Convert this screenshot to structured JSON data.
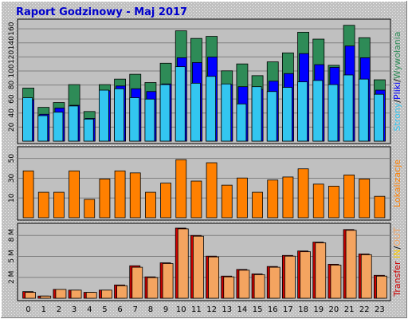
{
  "chart_data": {
    "type": "bar",
    "title": "Raport Godzinowy -  Maj 2017",
    "categories": [
      "0",
      "1",
      "2",
      "3",
      "4",
      "5",
      "6",
      "7",
      "8",
      "9",
      "10",
      "11",
      "12",
      "13",
      "14",
      "15",
      "16",
      "17",
      "18",
      "19",
      "20",
      "21",
      "22",
      "23"
    ],
    "panels": [
      {
        "ylim": [
          0,
          170
        ],
        "yticks": [
          "20",
          "40",
          "60",
          "80",
          "100",
          "120",
          "140",
          "160"
        ],
        "labels": [
          {
            "text": "Strony",
            "color": "#33c6f0"
          },
          {
            "text": "/",
            "color": "#000000"
          },
          {
            "text": "Pliki",
            "color": "#0000ff"
          },
          {
            "text": "/",
            "color": "#000000"
          },
          {
            "text": "Wywołania",
            "color": "#2e8b57"
          }
        ],
        "series": [
          {
            "name": "Wywołania",
            "color": "#2e8b57",
            "values": [
              77,
              49,
              56,
              82,
              43,
              82,
              90,
              97,
              85,
              113,
              160,
              149,
              152,
              102,
              112,
              95,
              115,
              128,
              158,
              148,
              110,
              168,
              150,
              89
            ]
          },
          {
            "name": "Pliki",
            "color": "#0000ff",
            "values": [
              60,
              39,
              48,
              52,
              33,
              73,
              80,
              76,
              72,
              83,
              121,
              114,
              122,
              82,
              79,
              75,
              87,
              98,
              127,
              111,
              107,
              138,
              121,
              74
            ]
          },
          {
            "name": "Strony",
            "color": "#33c6f0",
            "values": [
              63,
              37,
              42,
              51,
              32,
              74,
              76,
              63,
              61,
              82,
              108,
              84,
              94,
              83,
              54,
              79,
              72,
              78,
              86,
              88,
              82,
              96,
              90,
              68
            ]
          }
        ]
      },
      {
        "ylim": [
          0,
          65
        ],
        "yticks": [
          "10",
          "30",
          "50"
        ],
        "labels": [
          {
            "text": "Lokalizacje",
            "color": "#ff8000"
          }
        ],
        "series": [
          {
            "name": "Lokalizacje",
            "color": "#ff8000",
            "values": [
              46,
              25,
              25,
              46,
              18,
              38,
              46,
              44,
              25,
              34,
              57,
              36,
              54,
              32,
              39,
              25,
              37,
              40,
              48,
              33,
              31,
              42,
              38,
              21
            ]
          }
        ]
      },
      {
        "ylim": [
          0,
          9.5
        ],
        "yticks": [
          "2 M",
          "5 M",
          "8 M"
        ],
        "labels": [
          {
            "text": "Transfer",
            "color": "#cc0000"
          },
          {
            "text": " ",
            "color": "#000000"
          },
          {
            "text": "IN",
            "color": "#ffcc00"
          },
          {
            "text": "/",
            "color": "#000000"
          },
          {
            "text": "OUT",
            "color": "#f4a460"
          }
        ],
        "series": [
          {
            "name": "IN",
            "color": "#cc0000",
            "values": [
              0.9,
              0.3,
              1.2,
              1.1,
              0.8,
              1.1,
              1.8,
              4.4,
              2.9,
              4.8,
              9.5,
              8.5,
              5.7,
              3.0,
              3.9,
              3.3,
              4.3,
              5.8,
              6.4,
              7.6,
              4.6,
              9.3,
              6.0,
              3.1
            ]
          },
          {
            "name": "OUT",
            "color": "#f4a460",
            "values": [
              0.8,
              0.3,
              1.2,
              1.1,
              0.8,
              1.1,
              1.7,
              4.2,
              2.8,
              4.7,
              9.4,
              8.4,
              5.6,
              2.9,
              3.8,
              3.2,
              4.2,
              5.7,
              6.3,
              7.5,
              4.5,
              9.2,
              5.9,
              3.0
            ]
          }
        ]
      }
    ]
  }
}
